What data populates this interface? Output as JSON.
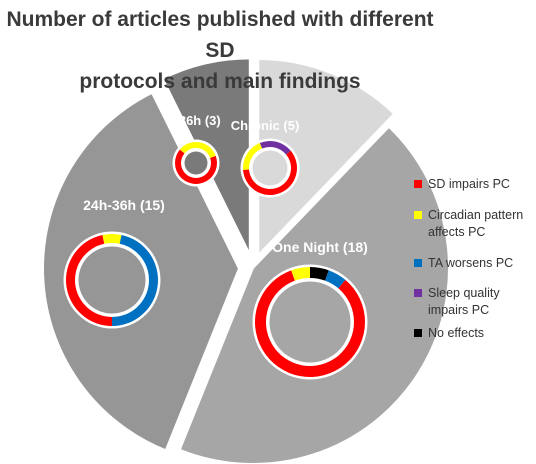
{
  "title_lines": [
    "Number of articles published with different SD",
    "protocols and main findings"
  ],
  "colors": {
    "slice_chronic": "#d9d9d9",
    "slice_one_night": "#a6a6a6",
    "slice_24_36": "#969696",
    "slice_gt36": "#7a7a7a",
    "edge": "#ffffff"
  },
  "legend": [
    {
      "label": "SD impairs PC",
      "color": "#ff0000"
    },
    {
      "label": "Circadian pattern affects PC",
      "color": "#ffff00"
    },
    {
      "label": "TA worsens PC",
      "color": "#0070c0"
    },
    {
      "label": "Sleep quality impairs PC",
      "color": "#7030a0"
    },
    {
      "label": "No effects",
      "color": "#000000"
    }
  ],
  "chart_data": {
    "type": "pie",
    "title": "Number of articles published with different SD protocols and main findings",
    "slices": [
      {
        "key": "chronic",
        "label": "Chronic (5)",
        "value": 5
      },
      {
        "key": "one_night",
        "label": "One Night (18)",
        "value": 18
      },
      {
        "key": "24_36",
        "label": "24h-36h (15)",
        "value": 15
      },
      {
        "key": "gt36",
        "label": ">36h (3)",
        "value": 3
      }
    ],
    "findings": {
      "chronic": {
        "SD impairs PC": 3,
        "Circadian pattern affects PC": 1,
        "Sleep quality impairs PC": 1
      },
      "one_night": {
        "SD impairs PC": 15,
        "Circadian pattern affects PC": 1,
        "No effects": 1,
        "TA worsens PC": 1
      },
      "24_36": {
        "SD impairs PC": 7,
        "Circadian pattern affects PC": 1,
        "TA worsens PC": 7
      },
      "gt36": {
        "SD impairs PC": 2,
        "Circadian pattern affects PC": 1
      }
    }
  }
}
